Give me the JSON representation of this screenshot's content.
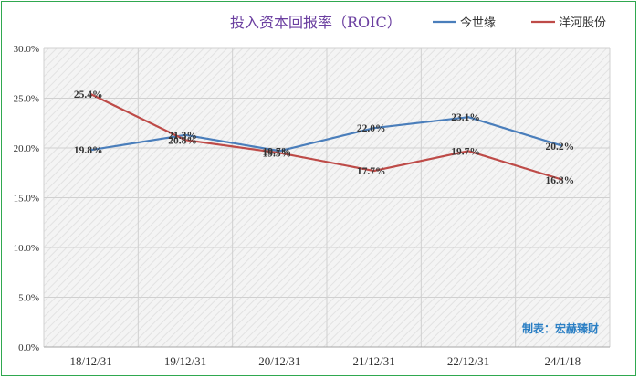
{
  "chart_data": {
    "type": "line",
    "title": "投入资本回报率（ROIC）",
    "categories": [
      "18/12/31",
      "19/12/31",
      "20/12/31",
      "21/12/31",
      "22/12/31",
      "24/1/18"
    ],
    "series": [
      {
        "name": "今世缘",
        "color": "#4a7ebb",
        "values": [
          19.8,
          21.3,
          19.7,
          22.0,
          23.1,
          20.2
        ],
        "labels": [
          "19.8%",
          "21.3%",
          "19.7%",
          "22.0%",
          "23.1%",
          "20.2%"
        ]
      },
      {
        "name": "洋河股份",
        "color": "#be4b48",
        "values": [
          25.4,
          20.8,
          19.5,
          17.7,
          19.7,
          16.8
        ],
        "labels": [
          "25.4%",
          "20.8%",
          "19.5%",
          "17.7%",
          "19.7%",
          "16.8%"
        ]
      }
    ],
    "ylim": [
      0,
      30
    ],
    "yticks": [
      {
        "value": 0,
        "label": "0.0%"
      },
      {
        "value": 5,
        "label": "5.0%"
      },
      {
        "value": 10,
        "label": "10.0%"
      },
      {
        "value": 15,
        "label": "15.0%"
      },
      {
        "value": 20,
        "label": "20.0%"
      },
      {
        "value": 25,
        "label": "25.0%"
      },
      {
        "value": 30,
        "label": "30.0%"
      }
    ],
    "grid": true,
    "legend": "top-right",
    "plot_background": "hatched-gray"
  },
  "credit": "制表：宏赫臻财"
}
